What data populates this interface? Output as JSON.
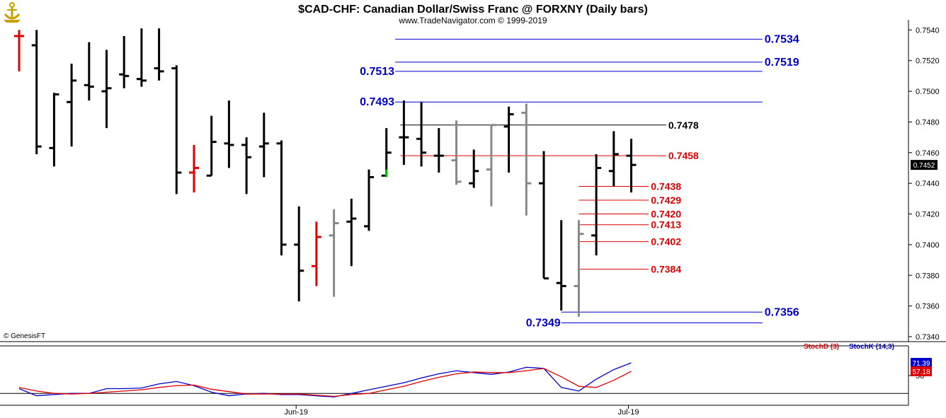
{
  "header": {
    "title": "$CAD-CHF:  Canadian Dollar/Swiss Franc @ FORXNY  (Daily bars)",
    "subtitle": "www.TradeNavigator.com © 1999-2019",
    "credit": "© GenesisFT",
    "logo_icon": "anchor-logo-icon"
  },
  "chart_data": [
    {
      "type": "ohlc",
      "ylim": [
        0.734,
        0.7542
      ],
      "yticks": [
        "0.7540",
        "0.7520",
        "0.7500",
        "0.7480",
        "0.7460",
        "0.7440",
        "0.7420",
        "0.7400",
        "0.7380",
        "0.7360",
        "0.7340"
      ],
      "last_price": "0.7452",
      "x_labels": [
        {
          "label": "Jun-19",
          "index": 16
        },
        {
          "label": "Jul-19",
          "index": 35
        }
      ],
      "bar_colors": {
        "black": "#000000",
        "red": "#e00000",
        "gray": "#888888",
        "green": "#00c000"
      },
      "bars": [
        {
          "o": 0.7536,
          "h": 0.754,
          "l": 0.7513,
          "c": 0.7536,
          "color": "red"
        },
        {
          "o": 0.753,
          "h": 0.754,
          "l": 0.7459,
          "c": 0.7464,
          "color": "black"
        },
        {
          "o": 0.7463,
          "h": 0.7499,
          "l": 0.7451,
          "c": 0.7498,
          "color": "black"
        },
        {
          "o": 0.7493,
          "h": 0.7518,
          "l": 0.7464,
          "c": 0.7507,
          "color": "black"
        },
        {
          "o": 0.7504,
          "h": 0.7532,
          "l": 0.7494,
          "c": 0.7503,
          "color": "black"
        },
        {
          "o": 0.75,
          "h": 0.7527,
          "l": 0.7476,
          "c": 0.7502,
          "color": "black"
        },
        {
          "o": 0.7511,
          "h": 0.7536,
          "l": 0.7502,
          "c": 0.751,
          "color": "black"
        },
        {
          "o": 0.7508,
          "h": 0.7541,
          "l": 0.7503,
          "c": 0.7507,
          "color": "black"
        },
        {
          "o": 0.7515,
          "h": 0.7541,
          "l": 0.7507,
          "c": 0.7513,
          "color": "black"
        },
        {
          "o": 0.7515,
          "h": 0.7517,
          "l": 0.7433,
          "c": 0.7447,
          "color": "black"
        },
        {
          "o": 0.7447,
          "h": 0.7465,
          "l": 0.7434,
          "c": 0.745,
          "color": "red"
        },
        {
          "o": 0.7445,
          "h": 0.7484,
          "l": 0.7445,
          "c": 0.7467,
          "color": "black"
        },
        {
          "o": 0.7466,
          "h": 0.7494,
          "l": 0.745,
          "c": 0.7465,
          "color": "black"
        },
        {
          "o": 0.7465,
          "h": 0.747,
          "l": 0.7433,
          "c": 0.7457,
          "color": "black"
        },
        {
          "o": 0.7464,
          "h": 0.7486,
          "l": 0.7444,
          "c": 0.7466,
          "color": "black"
        },
        {
          "o": 0.7466,
          "h": 0.7468,
          "l": 0.7393,
          "c": 0.74,
          "color": "black"
        },
        {
          "o": 0.74,
          "h": 0.7425,
          "l": 0.7363,
          "c": 0.7383,
          "color": "black"
        },
        {
          "o": 0.7386,
          "h": 0.7415,
          "l": 0.7373,
          "c": 0.7405,
          "color": "red"
        },
        {
          "o": 0.7406,
          "h": 0.7423,
          "l": 0.7366,
          "c": 0.7414,
          "color": "gray"
        },
        {
          "o": 0.7415,
          "h": 0.743,
          "l": 0.7386,
          "c": 0.7417,
          "color": "black"
        },
        {
          "o": 0.7412,
          "h": 0.7449,
          "l": 0.7409,
          "c": 0.7444,
          "color": "black"
        },
        {
          "o": 0.7445,
          "h": 0.7476,
          "l": 0.7445,
          "c": 0.746,
          "color": "black"
        },
        {
          "o": 0.747,
          "h": 0.7494,
          "l": 0.7452,
          "c": 0.747,
          "color": "black"
        },
        {
          "o": 0.7469,
          "h": 0.7493,
          "l": 0.7451,
          "c": 0.746,
          "color": "black"
        },
        {
          "o": 0.7458,
          "h": 0.7476,
          "l": 0.7447,
          "c": 0.7458,
          "color": "black"
        },
        {
          "o": 0.7455,
          "h": 0.7481,
          "l": 0.7439,
          "c": 0.7441,
          "color": "gray"
        },
        {
          "o": 0.744,
          "h": 0.7462,
          "l": 0.7437,
          "c": 0.7448,
          "color": "black"
        },
        {
          "o": 0.7449,
          "h": 0.7478,
          "l": 0.7425,
          "c": 0.7478,
          "color": "gray"
        },
        {
          "o": 0.7477,
          "h": 0.749,
          "l": 0.7447,
          "c": 0.7485,
          "color": "black"
        },
        {
          "o": 0.7486,
          "h": 0.7492,
          "l": 0.7419,
          "c": 0.744,
          "color": "gray"
        },
        {
          "o": 0.744,
          "h": 0.7461,
          "l": 0.7378,
          "c": 0.7378,
          "color": "black"
        },
        {
          "o": 0.7375,
          "h": 0.7416,
          "l": 0.7357,
          "c": 0.7373,
          "color": "black"
        },
        {
          "o": 0.7373,
          "h": 0.7416,
          "l": 0.7353,
          "c": 0.7407,
          "color": "gray"
        },
        {
          "o": 0.7406,
          "h": 0.7459,
          "l": 0.7393,
          "c": 0.745,
          "color": "black"
        },
        {
          "o": 0.7448,
          "h": 0.7474,
          "l": 0.7438,
          "c": 0.7459,
          "color": "black"
        },
        {
          "o": 0.7458,
          "h": 0.7469,
          "l": 0.7434,
          "c": 0.7452,
          "color": "black"
        }
      ],
      "levels": [
        {
          "label": "0.7534",
          "value": 0.7534,
          "color": "#0000cc",
          "x0": 21.5,
          "x1": 42.5,
          "label_side": "right"
        },
        {
          "label": "0.7519",
          "value": 0.7519,
          "color": "#0000cc",
          "x0": 21.5,
          "x1": 42.5,
          "label_side": "right"
        },
        {
          "label": "0.7513",
          "value": 0.7513,
          "color": "#0000cc",
          "x0": 21.5,
          "x1": 42.5,
          "label_side": "left"
        },
        {
          "label": "0.7493",
          "value": 0.7493,
          "color": "#0000cc",
          "x0": 21.5,
          "x1": 42.5,
          "label_side": "left"
        },
        {
          "label": "0.7478",
          "value": 0.7478,
          "color": "#000000",
          "x0": 21.8,
          "x1": 37.0,
          "label_side": "right",
          "small": true
        },
        {
          "label": "0.7458",
          "value": 0.7458,
          "color": "#e00000",
          "x0": 21.8,
          "x1": 37.0,
          "label_side": "right",
          "small": true
        },
        {
          "label": "0.7438",
          "value": 0.7438,
          "color": "#e00000",
          "x0": 32.0,
          "x1": 36.0,
          "label_side": "right",
          "small": true
        },
        {
          "label": "0.7429",
          "value": 0.7429,
          "color": "#e00000",
          "x0": 32.0,
          "x1": 36.0,
          "label_side": "right",
          "small": true
        },
        {
          "label": "0.7420",
          "value": 0.742,
          "color": "#e00000",
          "x0": 32.0,
          "x1": 36.0,
          "label_side": "right",
          "small": true
        },
        {
          "label": "0.7413",
          "value": 0.7413,
          "color": "#e00000",
          "x0": 32.0,
          "x1": 36.0,
          "label_side": "right",
          "small": true
        },
        {
          "label": "0.7402",
          "value": 0.7402,
          "color": "#e00000",
          "x0": 32.0,
          "x1": 36.0,
          "label_side": "right",
          "small": true
        },
        {
          "label": "0.7384",
          "value": 0.7384,
          "color": "#e00000",
          "x0": 32.0,
          "x1": 36.0,
          "label_side": "right",
          "small": true
        },
        {
          "label": "0.7356",
          "value": 0.7356,
          "color": "#0000cc",
          "x0": 31.0,
          "x1": 42.5,
          "label_side": "right"
        },
        {
          "label": "0.7349",
          "value": 0.7349,
          "color": "#0000cc",
          "x0": 31.0,
          "x1": 42.5,
          "label_side": "left"
        }
      ]
    },
    {
      "type": "line",
      "name": "stochastic",
      "ylim": [
        0,
        100
      ],
      "ytick": "50",
      "legend": [
        {
          "name": "StochD (3)",
          "color": "#e00000"
        },
        {
          "name": "StochK (14,3)",
          "color": "#0000cc"
        }
      ],
      "last_values": [
        {
          "label": "71.39",
          "color": "#0000cc",
          "value": 71.39
        },
        {
          "label": "57.18",
          "color": "#e00000",
          "value": 57.18
        }
      ],
      "series": [
        {
          "name": "StochK (14,3)",
          "color": "#0000cc",
          "values": [
            28,
            16,
            18,
            20,
            20,
            28,
            28,
            29,
            36,
            40,
            33,
            22,
            16,
            19,
            20,
            18,
            18,
            16,
            14,
            20,
            26,
            32,
            38,
            46,
            53,
            58,
            55,
            52,
            56,
            64,
            62,
            30,
            24,
            44,
            60,
            71.39
          ]
        },
        {
          "name": "StochD (3)",
          "color": "#e00000",
          "values": [
            30,
            24,
            20,
            19,
            20,
            22,
            24,
            26,
            30,
            33,
            34,
            27,
            23,
            19,
            19,
            19,
            19,
            17,
            15,
            18,
            20,
            26,
            32,
            40,
            47,
            53,
            56,
            55,
            55,
            58,
            62,
            48,
            32,
            30,
            42,
            57.18
          ]
        }
      ]
    }
  ]
}
